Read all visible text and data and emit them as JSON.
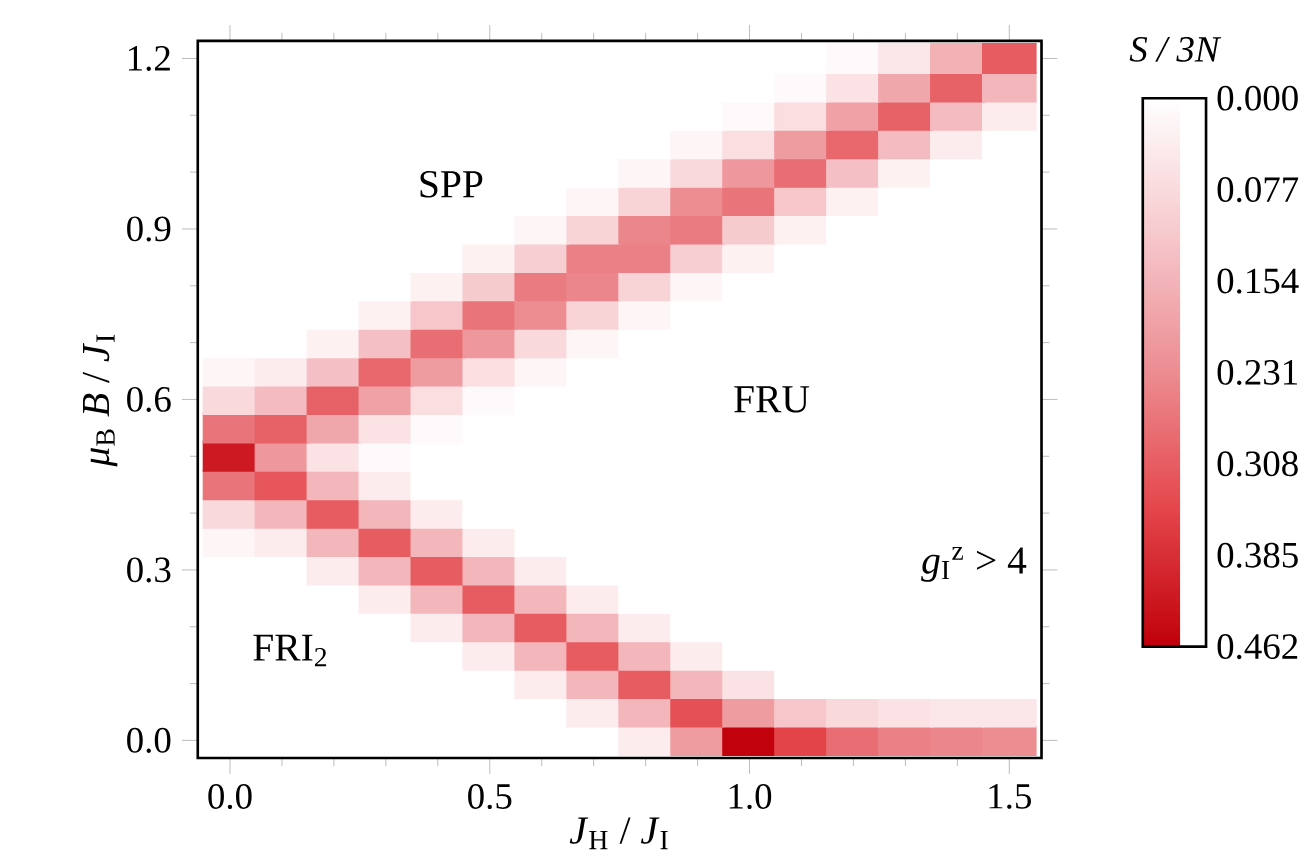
{
  "chart_data": {
    "type": "heatmap",
    "xlabel": "*J*$_{H}$ / *J*$_{I}$",
    "ylabel": "*μ*$_{B}$ *B* / *J*$_{I}$",
    "clabel": "S / 3N",
    "categories": [
      "0.0",
      null,
      null,
      null,
      null,
      "0.5",
      null,
      null,
      null,
      null,
      "1.0",
      null,
      null,
      null,
      null,
      "1.5"
    ],
    "y_categories": [
      "1.2",
      null,
      null,
      null,
      null,
      null,
      "0.9",
      null,
      null,
      null,
      null,
      null,
      "0.6",
      null,
      null,
      null,
      null,
      null,
      "0.3",
      null,
      null,
      null,
      null,
      null,
      "0.0"
    ],
    "cells": [
      [
        0,
        0,
        0,
        0,
        0,
        0,
        0,
        0,
        0,
        0,
        0,
        0,
        0.01,
        0.05,
        0.16,
        0.31
      ],
      [
        0,
        0,
        0,
        0,
        0,
        0,
        0,
        0,
        0,
        0,
        0,
        0.01,
        0.06,
        0.18,
        0.3,
        0.15
      ],
      [
        0,
        0,
        0,
        0,
        0,
        0,
        0,
        0,
        0,
        0,
        0.01,
        0.07,
        0.19,
        0.3,
        0.14,
        0.04
      ],
      [
        0,
        0,
        0,
        0,
        0,
        0,
        0,
        0,
        0,
        0.02,
        0.07,
        0.2,
        0.29,
        0.14,
        0.04,
        0
      ],
      [
        0,
        0,
        0,
        0,
        0,
        0,
        0,
        0,
        0.02,
        0.08,
        0.21,
        0.28,
        0.13,
        0.03,
        0,
        0
      ],
      [
        0,
        0,
        0,
        0,
        0,
        0,
        0,
        0.02,
        0.09,
        0.23,
        0.27,
        0.12,
        0.03,
        0,
        0,
        0
      ],
      [
        0,
        0,
        0,
        0,
        0,
        0,
        0.02,
        0.09,
        0.24,
        0.26,
        0.11,
        0.03,
        0,
        0,
        0,
        0
      ],
      [
        0,
        0,
        0,
        0,
        0,
        0.03,
        0.1,
        0.25,
        0.25,
        0.1,
        0.03,
        0,
        0,
        0,
        0,
        0
      ],
      [
        0,
        0,
        0,
        0,
        0.03,
        0.11,
        0.26,
        0.24,
        0.09,
        0.02,
        0,
        0,
        0,
        0,
        0,
        0
      ],
      [
        0,
        0,
        0,
        0.03,
        0.12,
        0.27,
        0.23,
        0.09,
        0.02,
        0,
        0,
        0,
        0,
        0,
        0,
        0
      ],
      [
        0,
        0,
        0.03,
        0.13,
        0.28,
        0.21,
        0.08,
        0.02,
        0,
        0,
        0,
        0,
        0,
        0,
        0,
        0
      ],
      [
        0.02,
        0.04,
        0.13,
        0.29,
        0.2,
        0.07,
        0.02,
        0,
        0,
        0,
        0,
        0,
        0,
        0,
        0,
        0
      ],
      [
        0.08,
        0.14,
        0.3,
        0.19,
        0.07,
        0.01,
        0,
        0,
        0,
        0,
        0,
        0,
        0,
        0,
        0,
        0
      ],
      [
        0.27,
        0.3,
        0.18,
        0.06,
        0.01,
        0,
        0,
        0,
        0,
        0,
        0,
        0,
        0,
        0,
        0,
        0
      ],
      [
        0.42,
        0.21,
        0.06,
        0.01,
        0,
        0,
        0,
        0,
        0,
        0,
        0,
        0,
        0,
        0,
        0,
        0
      ],
      [
        0.27,
        0.32,
        0.15,
        0.04,
        0,
        0,
        0,
        0,
        0,
        0,
        0,
        0,
        0,
        0,
        0,
        0
      ],
      [
        0.08,
        0.15,
        0.31,
        0.15,
        0.04,
        0,
        0,
        0,
        0,
        0,
        0,
        0,
        0,
        0,
        0,
        0
      ],
      [
        0.02,
        0.04,
        0.15,
        0.31,
        0.15,
        0.04,
        0,
        0,
        0,
        0,
        0,
        0,
        0,
        0,
        0,
        0
      ],
      [
        0,
        0,
        0.04,
        0.15,
        0.31,
        0.15,
        0.04,
        0,
        0,
        0,
        0,
        0,
        0,
        0,
        0,
        0
      ],
      [
        0,
        0,
        0,
        0.04,
        0.15,
        0.31,
        0.15,
        0.04,
        0,
        0,
        0,
        0,
        0,
        0,
        0,
        0
      ],
      [
        0,
        0,
        0,
        0,
        0.04,
        0.15,
        0.31,
        0.15,
        0.04,
        0,
        0,
        0,
        0,
        0,
        0,
        0
      ],
      [
        0,
        0,
        0,
        0,
        0,
        0.04,
        0.15,
        0.31,
        0.15,
        0.04,
        0,
        0,
        0,
        0,
        0,
        0
      ],
      [
        0,
        0,
        0,
        0,
        0,
        0,
        0.04,
        0.15,
        0.31,
        0.15,
        0.06,
        0,
        0,
        0,
        0,
        0
      ],
      [
        0,
        0,
        0,
        0,
        0,
        0,
        0,
        0.04,
        0.15,
        0.33,
        0.2,
        0.12,
        0.08,
        0.06,
        0.05,
        0.05
      ],
      [
        0,
        0,
        0,
        0,
        0,
        0,
        0,
        0,
        0.04,
        0.2,
        0.46,
        0.35,
        0.28,
        0.25,
        0.24,
        0.23
      ]
    ],
    "clim": [
      0.462,
      0
    ],
    "cticks": [
      {
        "value": 0,
        "label": "0.000"
      },
      0.077,
      0.154,
      0.231,
      0.308,
      0.385,
      0.462
    ],
    "annotations": [
      "SPP",
      "FRU",
      "FRI$_{2}$",
      "*g*$_{I}$$^{z}$ > 4"
    ]
  }
}
